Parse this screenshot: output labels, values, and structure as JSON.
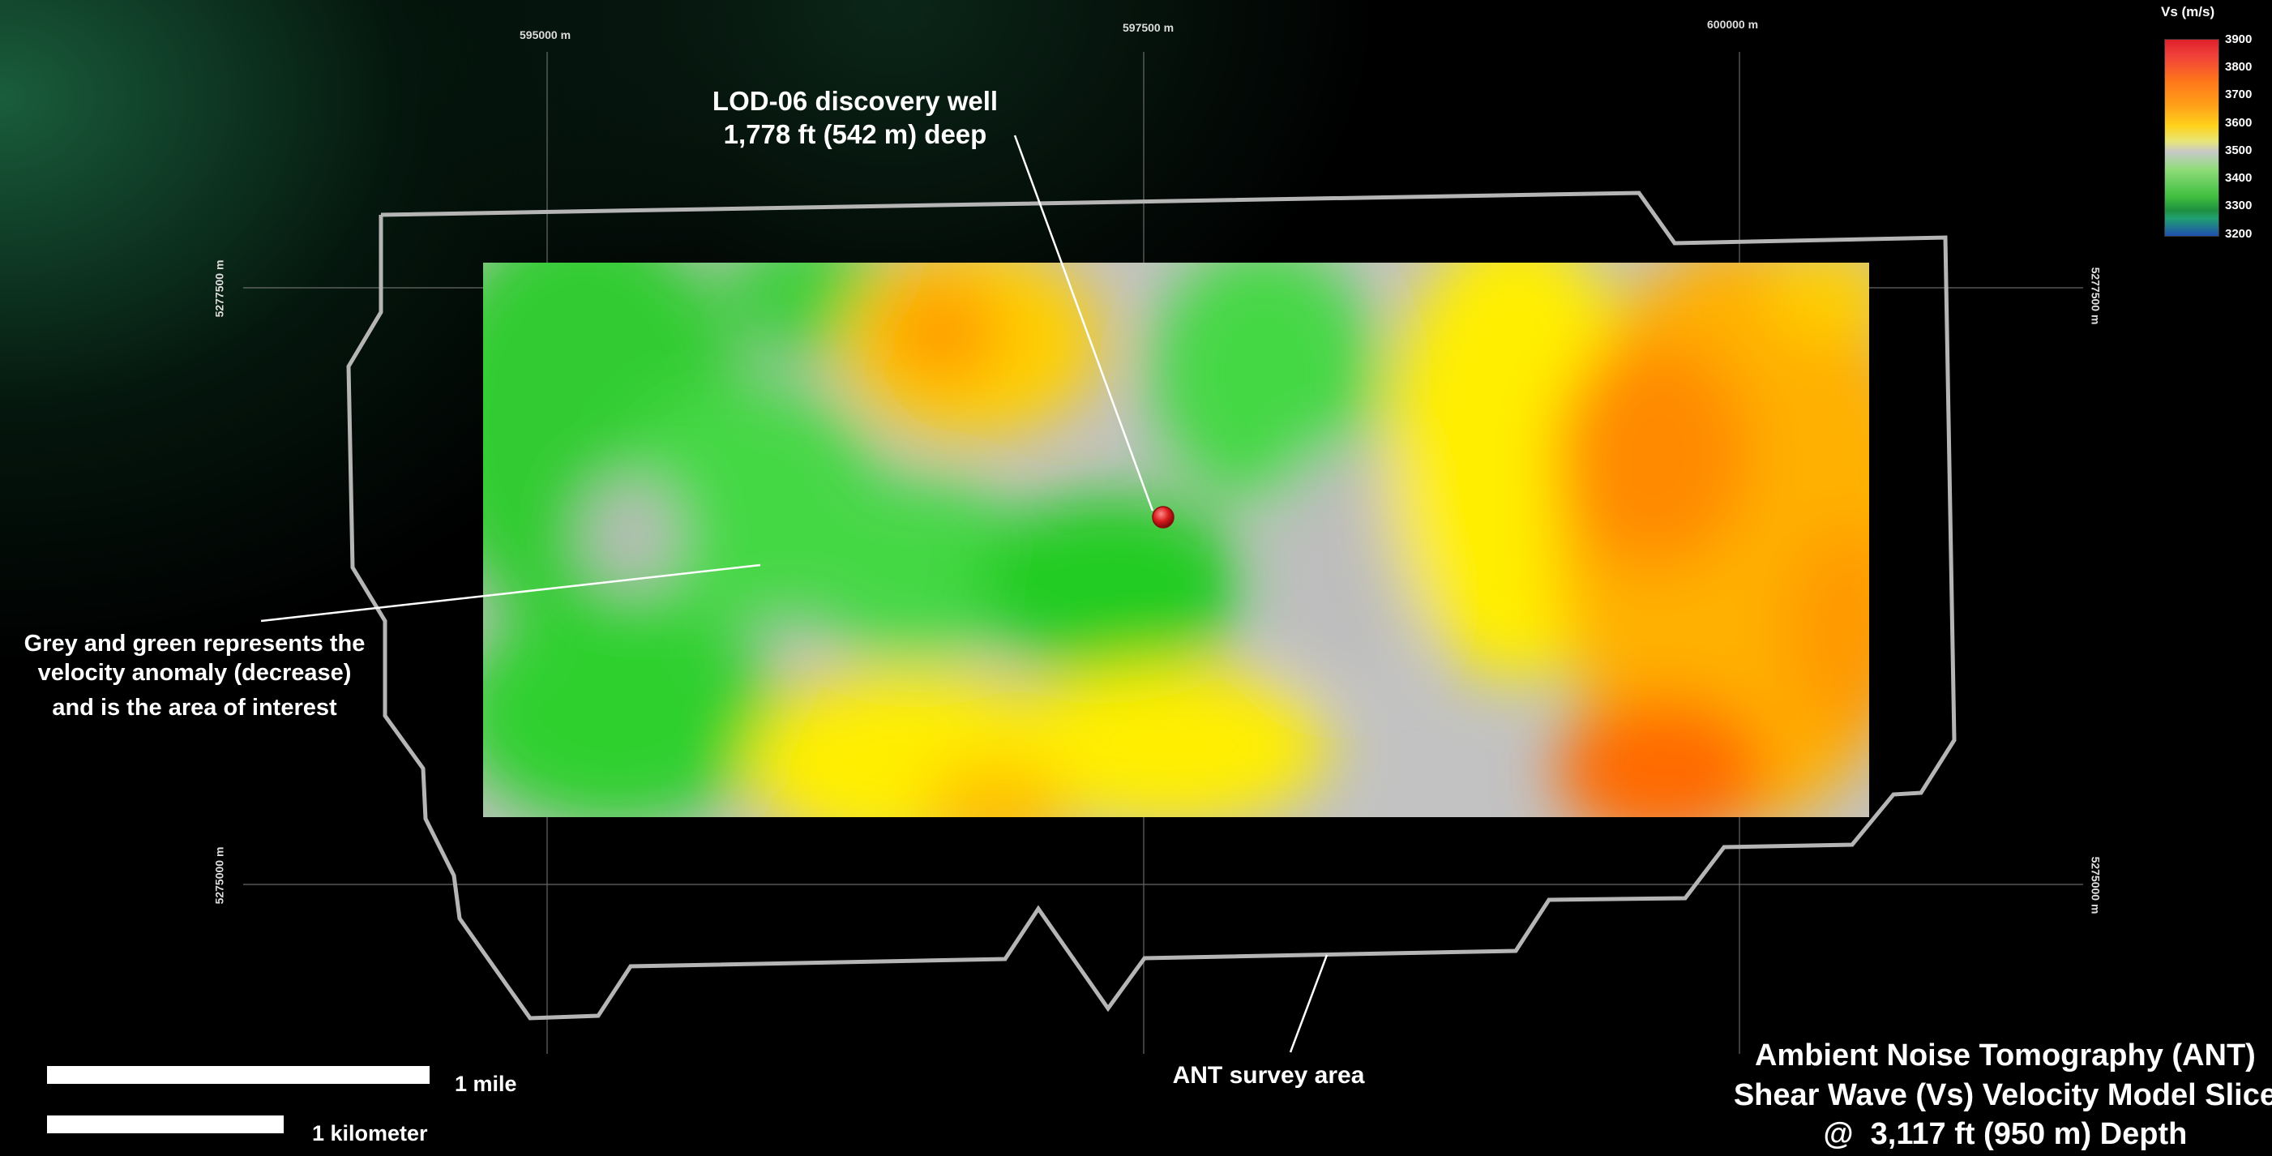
{
  "grid": {
    "easting_labels": [
      "595000 m",
      "597500 m",
      "600000 m"
    ],
    "northing_labels": [
      "5277500 m",
      "5275000 m"
    ]
  },
  "annotations": {
    "well_line1": "LOD-06 discovery well",
    "well_line2": "1,778 ft (542 m) deep",
    "anomaly_line1": "Grey and green represents the",
    "anomaly_line2": "velocity anomaly (decrease)",
    "anomaly_line3": "and is the area of interest",
    "survey_area": "ANT survey area"
  },
  "legend": {
    "title": "Vs (m/s)",
    "ticks": [
      "3900",
      "3800",
      "3700",
      "3600",
      "3500",
      "3400",
      "3300",
      "3200"
    ]
  },
  "scale": {
    "mile_label": "1 mile",
    "km_label": "1 kilometer"
  },
  "title": {
    "line1": "Ambient Noise Tomography (ANT)",
    "line2": "Shear Wave (Vs) Velocity Model Slice",
    "line3": "@  3,117 ft (950 m) Depth"
  },
  "colors": {
    "background": "#000000",
    "survey_outline": "#b5b5b5",
    "low_velocity_green": "#3fd23f",
    "mid_grey": "#c0c0c0",
    "yellow": "#ffee00",
    "high_velocity_orange": "#ff6a00",
    "well_marker": "#d81b1b"
  }
}
